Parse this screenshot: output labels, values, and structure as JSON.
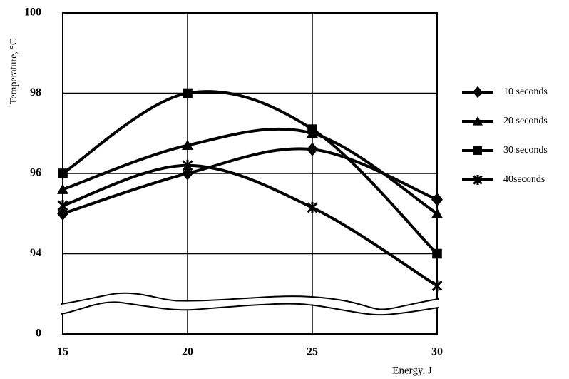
{
  "chart_data": {
    "type": "line",
    "x_label": "Energy, J",
    "y_label": "Temperature, °C",
    "x": [
      15,
      20,
      25,
      30
    ],
    "xlim": [
      15,
      30
    ],
    "xticks": [
      15,
      20,
      25,
      30
    ],
    "ylim": [
      0,
      100
    ],
    "yticks": [
      0,
      94,
      96,
      98,
      100
    ],
    "axis_break": [
      0,
      92
    ],
    "grid": true,
    "smooth": true,
    "legend": "right",
    "series": [
      {
        "name": "10 seconds",
        "color": "#000000",
        "marker": "diamond",
        "values": [
          95.0,
          96.0,
          96.6,
          95.35
        ]
      },
      {
        "name": "20 seconds",
        "color": "#000000",
        "marker": "triangle",
        "values": [
          95.6,
          96.7,
          97.0,
          95.0
        ]
      },
      {
        "name": "30 seconds",
        "color": "#000000",
        "marker": "square",
        "values": [
          96.0,
          98.0,
          97.1,
          94.0
        ]
      },
      {
        "name": "40seconds",
        "color": "#000000",
        "marker": "star",
        "values": [
          95.2,
          96.2,
          95.15,
          93.2
        ]
      }
    ]
  }
}
